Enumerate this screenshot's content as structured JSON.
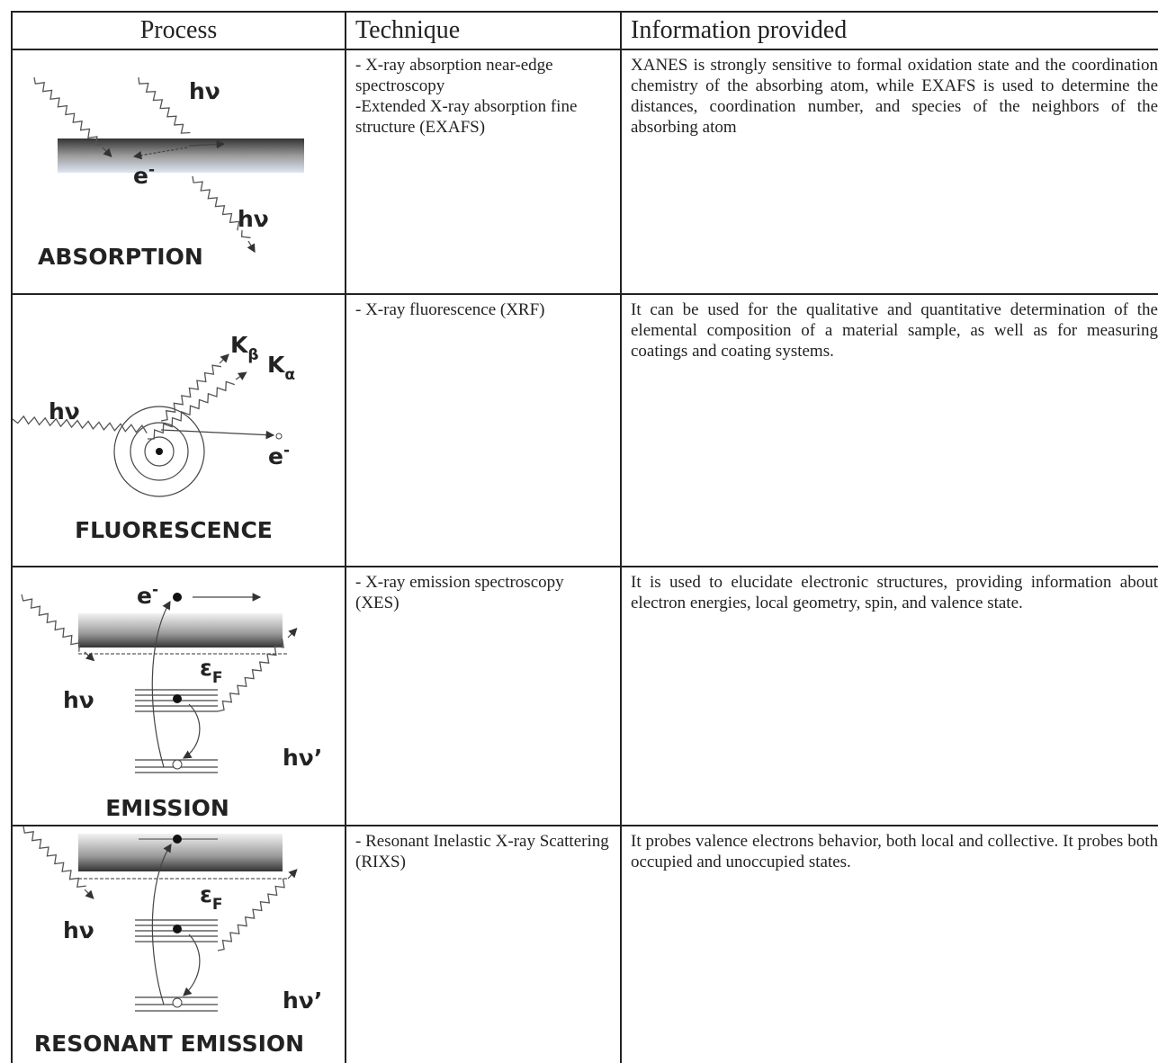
{
  "table": {
    "header": [
      "Process",
      "Technique",
      "Information provided"
    ],
    "rows": [
      {
        "process": {
          "labels": [
            "hν",
            "e",
            "-",
            "hν"
          ],
          "name": "ABSORPTION"
        },
        "technique": [
          "- X-ray absorption near-edge spectroscopy",
          "-Extended X-ray absorption fine structure (EXAFS)"
        ],
        "information": "XANES is strongly sensitive to formal oxidation state and the coordination chemistry of the absorbing atom, while EXAFS is used to determine the distances, coordination number, and species of the neighbors of the absorbing atom"
      },
      {
        "process": {
          "labels": [
            "K",
            "β",
            "K",
            "α",
            "hν",
            "e",
            "-"
          ],
          "name": "FLUORESCENCE"
        },
        "technique": [
          "- X-ray fluorescence (XRF)"
        ],
        "information": "It can be used for the qualitative and quantitative determination of the elemental composition of a material sample, as well as for measuring coatings and coating systems."
      },
      {
        "process": {
          "labels": [
            "e",
            "-",
            "ε",
            "F",
            "hν",
            "hν’"
          ],
          "name": "EMISSION"
        },
        "technique": [
          "- X-ray emission spectroscopy (XES)"
        ],
        "information": "It is used to elucidate electronic structures, providing information about electron energies, local geometry, spin, and valence state."
      },
      {
        "process": {
          "labels": [
            "ε",
            "F",
            "hν",
            "hν’"
          ],
          "name": "RESONANT EMISSION"
        },
        "technique": [
          "- Resonant Inelastic X-ray Scattering (RIXS)"
        ],
        "information": "It probes valence electrons behavior, both local and collective. It probes both occupied and unoccupied states."
      }
    ]
  }
}
